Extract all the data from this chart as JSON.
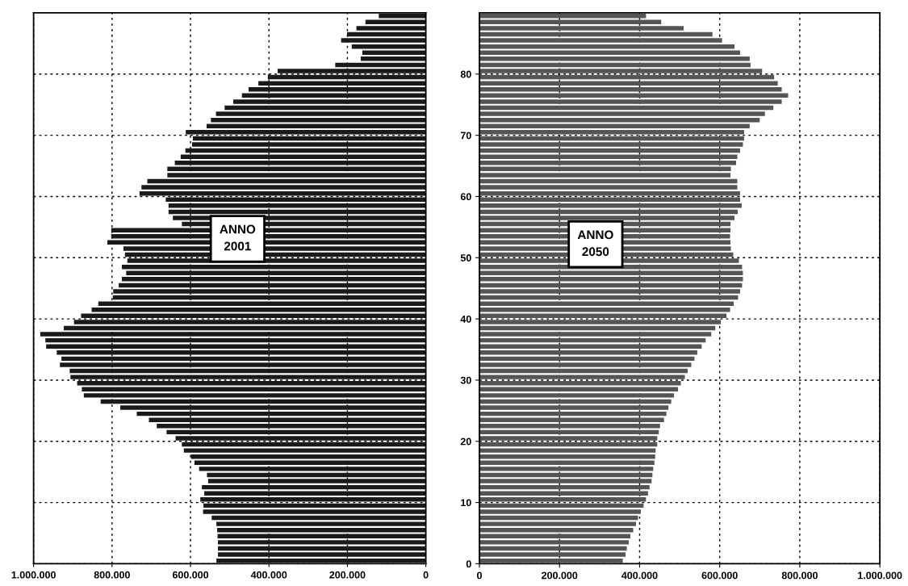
{
  "chart_data": [
    {
      "type": "bar",
      "orientation": "horizontal",
      "color": "#1a1a1a",
      "x": [
        0.5,
        1.5,
        2.5,
        3.5,
        4.5,
        5.5,
        6.5,
        7.5,
        8.5,
        9.5,
        10.5,
        11.5,
        12.5,
        13.5,
        14.5,
        15.5,
        16.5,
        17.5,
        18.5,
        19.5,
        20.5,
        21.5,
        22.5,
        23.5,
        24.5,
        25.5,
        26.5,
        27.5,
        28.5,
        29.5,
        30.5,
        31.5,
        32.5,
        33.5,
        34.5,
        35.5,
        36.5,
        37.5,
        38.5,
        39.5,
        40.5,
        41.5,
        42.5,
        43.5,
        44.5,
        45.5,
        46.5,
        47.5,
        48.5,
        49.5,
        50.5,
        51.5,
        52.5,
        53.5,
        54.5,
        55.5,
        56.5,
        57.5,
        58.5,
        59.5,
        60.5,
        61.5,
        62.5,
        63.5,
        64.5,
        65.5,
        66.5,
        67.5,
        68.5,
        69.5,
        70.5,
        71.5,
        72.5,
        73.5,
        74.5,
        75.5,
        76.5,
        77.5,
        78.5,
        79.5,
        80.5,
        81.5,
        82.5,
        83.5,
        84.5,
        85.5,
        86.5,
        87.5,
        88.5,
        89.5
      ],
      "values": [
        534000,
        530000,
        530000,
        530000,
        531000,
        532000,
        534000,
        546000,
        568000,
        567000,
        575000,
        565000,
        571000,
        555000,
        558000,
        578000,
        590000,
        599000,
        617000,
        622000,
        638000,
        661000,
        686000,
        706000,
        737000,
        779000,
        829000,
        872000,
        877000,
        889000,
        906000,
        908000,
        933000,
        929000,
        941000,
        968000,
        970000,
        983000,
        923000,
        897000,
        879000,
        852000,
        835000,
        798000,
        797000,
        783000,
        775000,
        764000,
        775000,
        761000,
        767000,
        771000,
        812000,
        802000,
        802000,
        622000,
        645000,
        656000,
        656000,
        663000,
        730000,
        725000,
        710000,
        659000,
        659000,
        640000,
        625000,
        613000,
        596000,
        594000,
        612000,
        559000,
        548000,
        535000,
        513000,
        491000,
        469000,
        452000,
        427000,
        403000,
        378000,
        231000,
        166000,
        162000,
        189000,
        216000,
        201000,
        177000,
        154000,
        120000
      ],
      "xlim": [
        1000000,
        0
      ],
      "xticks": [
        {
          "value": 1000000,
          "label": "1.000.000"
        },
        {
          "value": 800000,
          "label": "800.000"
        },
        {
          "value": 600000,
          "label": "600.000"
        },
        {
          "value": 400000,
          "label": "400.000"
        },
        {
          "value": 200000,
          "label": "200.000"
        },
        0
      ],
      "ylim": [
        0,
        90
      ],
      "yticks": [
        0,
        10,
        20,
        30,
        40,
        50,
        60,
        70,
        80
      ],
      "tick_labels": "x",
      "grid": true,
      "annotations": [
        "ANNO\n2001"
      ]
    },
    {
      "type": "bar",
      "orientation": "horizontal",
      "color": "#555555",
      "x": [
        0.5,
        1.5,
        2.5,
        3.5,
        4.5,
        5.5,
        6.5,
        7.5,
        8.5,
        9.5,
        10.5,
        11.5,
        12.5,
        13.5,
        14.5,
        15.5,
        16.5,
        17.5,
        18.5,
        19.5,
        20.5,
        21.5,
        22.5,
        23.5,
        24.5,
        25.5,
        26.5,
        27.5,
        28.5,
        29.5,
        30.5,
        31.5,
        32.5,
        33.5,
        34.5,
        35.5,
        36.5,
        37.5,
        38.5,
        39.5,
        40.5,
        41.5,
        42.5,
        43.5,
        44.5,
        45.5,
        46.5,
        47.5,
        48.5,
        49.5,
        50.5,
        51.5,
        52.5,
        53.5,
        54.5,
        55.5,
        56.5,
        57.5,
        58.5,
        59.5,
        60.5,
        61.5,
        62.5,
        63.5,
        64.5,
        65.5,
        66.5,
        67.5,
        68.5,
        69.5,
        70.5,
        71.5,
        72.5,
        73.5,
        74.5,
        75.5,
        76.5,
        77.5,
        78.5,
        79.5,
        80.5,
        81.5,
        82.5,
        83.5,
        84.5,
        85.5,
        86.5,
        87.5,
        88.5,
        89.5
      ],
      "values": [
        358000,
        365000,
        368000,
        373000,
        377000,
        384000,
        391000,
        396000,
        403000,
        410000,
        416000,
        421000,
        425000,
        430000,
        432000,
        434000,
        437000,
        439000,
        440000,
        444000,
        444000,
        448000,
        451000,
        461000,
        467000,
        472000,
        479000,
        486000,
        496000,
        503000,
        513000,
        520000,
        529000,
        537000,
        544000,
        555000,
        565000,
        579000,
        589000,
        603000,
        617000,
        626000,
        635000,
        646000,
        651000,
        656000,
        658000,
        658000,
        656000,
        648000,
        634000,
        628000,
        627000,
        626000,
        627000,
        627000,
        637000,
        645000,
        655000,
        651000,
        651000,
        644000,
        644000,
        627000,
        628000,
        641000,
        644000,
        651000,
        658000,
        661000,
        661000,
        675000,
        700000,
        713000,
        734000,
        755000,
        771000,
        755000,
        745000,
        736000,
        706000,
        677000,
        675000,
        651000,
        637000,
        606000,
        582000,
        510000,
        454000,
        416000
      ],
      "xlim": [
        0,
        1000000
      ],
      "xticks": [
        0,
        {
          "value": 200000,
          "label": "200.000"
        },
        {
          "value": 400000,
          "label": "400.000"
        },
        {
          "value": 600000,
          "label": "600.000"
        },
        {
          "value": 800000,
          "label": "800.000"
        },
        {
          "value": 1000000,
          "label": "1.000.000"
        }
      ],
      "ylim": [
        0,
        90
      ],
      "yticks": [
        0,
        10,
        20,
        30,
        40,
        50,
        60,
        70,
        80
      ],
      "grid": true,
      "annotations": [
        "ANNO\n2050"
      ]
    }
  ]
}
